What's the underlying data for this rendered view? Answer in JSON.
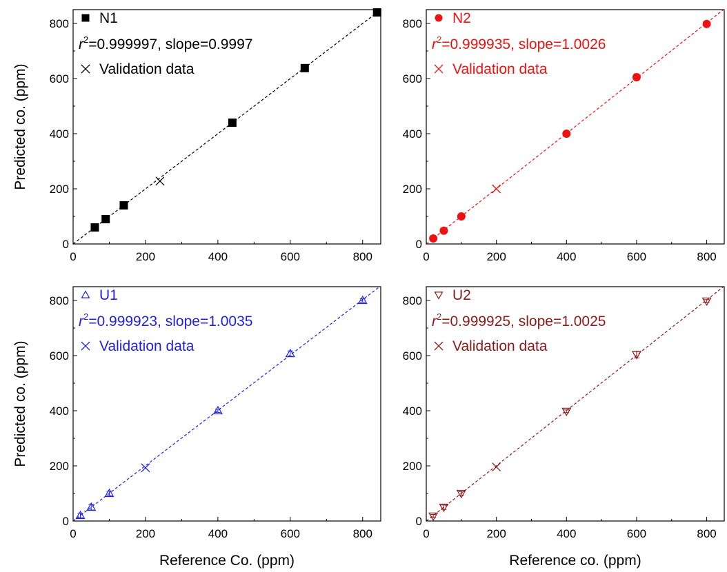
{
  "chart_data": [
    {
      "type": "scatter",
      "panel_id": "N1",
      "color": "#000000",
      "marker": "square",
      "xlabel": "",
      "ylabel": "Predicted co. (ppm)",
      "xlim": [
        0,
        850
      ],
      "ylim": [
        0,
        850
      ],
      "xticks": [
        0,
        200,
        400,
        600,
        800
      ],
      "yticks": [
        0,
        200,
        400,
        600,
        800
      ],
      "xtick_labels": [
        "0",
        "200",
        "400",
        "600",
        "800"
      ],
      "ytick_labels": [
        "0",
        "200",
        "400",
        "600",
        "800"
      ],
      "legend": {
        "series_label": "N1",
        "r2_prefix": "r",
        "r2_sup": "2",
        "r2_text": "=0.999997, slope=0.9997",
        "validation_label": "Validation data"
      },
      "fit": {
        "slope": 0.9997
      },
      "series": [
        {
          "name": "N1",
          "marker": "square",
          "x": [
            60,
            90,
            140,
            440,
            640,
            840
          ],
          "y": [
            60,
            90,
            140,
            440,
            638,
            840
          ]
        },
        {
          "name": "Validation data",
          "marker": "x",
          "x": [
            240
          ],
          "y": [
            228
          ]
        }
      ]
    },
    {
      "type": "scatter",
      "panel_id": "N2",
      "color": "#ee1111",
      "marker": "circle",
      "xlabel": "",
      "ylabel": "",
      "xlim": [
        0,
        850
      ],
      "ylim": [
        0,
        850
      ],
      "xticks": [
        0,
        200,
        400,
        600,
        800
      ],
      "yticks": [
        0,
        200,
        400,
        600,
        800
      ],
      "xtick_labels": [
        "0",
        "200",
        "400",
        "600",
        "800"
      ],
      "ytick_labels": [
        "0",
        "200",
        "400",
        "600",
        "800"
      ],
      "legend": {
        "series_label": "N2",
        "r2_prefix": "r",
        "r2_sup": "2",
        "r2_text": "=0.999935, slope=1.0026",
        "validation_label": "Validation data"
      },
      "fit": {
        "slope": 1.0026
      },
      "series": [
        {
          "name": "N2",
          "marker": "circle",
          "x": [
            20,
            50,
            100,
            400,
            600,
            800
          ],
          "y": [
            20,
            48,
            100,
            400,
            605,
            798
          ],
          "yerr": [
            0,
            0,
            0,
            0,
            12,
            0
          ]
        },
        {
          "name": "Validation data",
          "marker": "x",
          "x": [
            200
          ],
          "y": [
            200
          ]
        }
      ]
    },
    {
      "type": "scatter",
      "panel_id": "U1",
      "color": "#1f1fe6",
      "marker": "triangle-up",
      "xlabel": "Reference Co. (ppm)",
      "ylabel": "Predicted co. (ppm)",
      "xlim": [
        0,
        850
      ],
      "ylim": [
        0,
        850
      ],
      "xticks": [
        0,
        200,
        400,
        600,
        800
      ],
      "yticks": [
        0,
        200,
        400,
        600,
        800
      ],
      "xtick_labels": [
        "0",
        "200",
        "400",
        "600",
        "800"
      ],
      "ytick_labels": [
        "0",
        "200",
        "400",
        "600",
        "800"
      ],
      "legend": {
        "series_label": "U1",
        "r2_prefix": "r",
        "r2_sup": "2",
        "r2_text": "=0.999923, slope=1.0035",
        "validation_label": "Validation data"
      },
      "fit": {
        "slope": 1.0035
      },
      "series": [
        {
          "name": "U1",
          "marker": "triangle-up",
          "x": [
            20,
            50,
            100,
            400,
            600,
            800
          ],
          "y": [
            20,
            50,
            100,
            400,
            607,
            800
          ],
          "yerr": [
            8,
            10,
            8,
            6,
            10,
            6
          ]
        },
        {
          "name": "Validation data",
          "marker": "x",
          "x": [
            200
          ],
          "y": [
            193
          ]
        }
      ]
    },
    {
      "type": "scatter",
      "panel_id": "U2",
      "color": "#8b1a1a",
      "marker": "triangle-down",
      "xlabel": "Reference co. (ppm)",
      "ylabel": "",
      "xlim": [
        0,
        850
      ],
      "ylim": [
        0,
        850
      ],
      "xticks": [
        0,
        200,
        400,
        600,
        800
      ],
      "yticks": [
        0,
        200,
        400,
        600,
        800
      ],
      "xtick_labels": [
        "0",
        "200",
        "400",
        "600",
        "800"
      ],
      "ytick_labels": [
        "0",
        "200",
        "400",
        "600",
        "800"
      ],
      "legend": {
        "series_label": "U2",
        "r2_prefix": "r",
        "r2_sup": "2",
        "r2_text": "=0.999925, slope=1.0025",
        "validation_label": "Validation data"
      },
      "fit": {
        "slope": 1.0025
      },
      "series": [
        {
          "name": "U2",
          "marker": "triangle-down",
          "x": [
            20,
            50,
            100,
            400,
            600,
            800
          ],
          "y": [
            18,
            50,
            100,
            398,
            604,
            798
          ],
          "yerr": [
            6,
            8,
            6,
            5,
            12,
            5
          ]
        },
        {
          "name": "Validation data",
          "marker": "x",
          "x": [
            200
          ],
          "y": [
            196
          ]
        }
      ]
    }
  ]
}
